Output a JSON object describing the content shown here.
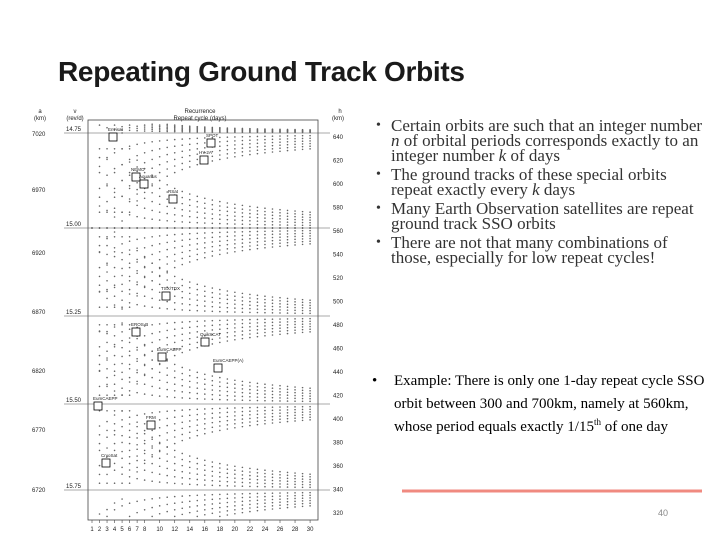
{
  "title": "Repeating Ground Track Orbits",
  "figure": {
    "a_label": "a",
    "a_unit": "(km)",
    "nu_label": "ν",
    "nu_unit": "(rev/d)",
    "top_label": "Recurrence",
    "top_sublabel": "Repeat cycle (days)",
    "h_label": "h",
    "h_unit": "(km)",
    "a_ticks": [
      "7020",
      "6970",
      "6920",
      "6870",
      "6820",
      "6770",
      "6720"
    ],
    "nu_ticks": [
      "14.75",
      "15.00",
      "15.25",
      "15.50",
      "15.75"
    ],
    "h_ticks": [
      "640",
      "620",
      "600",
      "580",
      "560",
      "540",
      "520",
      "500",
      "480",
      "460",
      "440",
      "420",
      "400",
      "380",
      "360",
      "340",
      "320"
    ],
    "x_ticks": [
      "1",
      "2",
      "3",
      "4",
      "5",
      "6",
      "7",
      "8",
      "10",
      "12",
      "14",
      "16",
      "18",
      "20",
      "22",
      "24",
      "26",
      "28",
      "30"
    ],
    "satellites": [
      "Envisat",
      "SPOT",
      "HY-2A",
      "NEMO",
      "Aquarius",
      "RSat",
      "TSX/TDX",
      "EROS-B",
      "EumCAEPP",
      "QuikSCAT",
      "EumCAEPP(A)",
      "EumCAEPP",
      "FRM",
      "CryoSat"
    ]
  },
  "bullets": [
    [
      "Certain orbits are such that an integer number ",
      "n",
      " of orbital periods corresponds exactly to an integer number ",
      "k",
      " of days"
    ],
    [
      "The ground tracks of these special orbits repeat exactly every ",
      "k",
      " days"
    ],
    [
      "Many Earth Observation satellites are repeat ground track SSO orbits"
    ],
    [
      "There are not that many combinations of those, especially for low repeat cycles!"
    ]
  ],
  "example": [
    "Example: There is only one 1-day repeat cycle SSO orbit between 300 and 700km, namely at 560km, whose period equals exactly 1/15",
    "th",
    " of one day"
  ],
  "page_number": "40"
}
